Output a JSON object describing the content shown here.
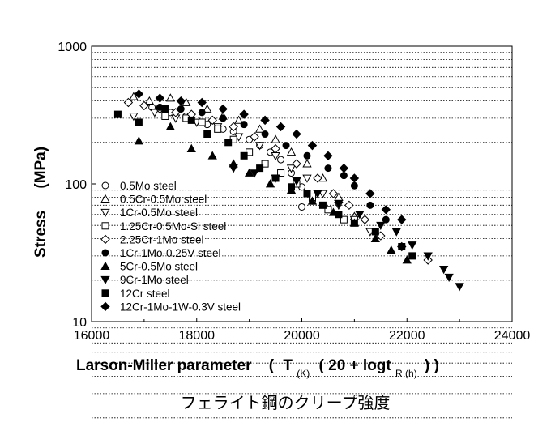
{
  "chart_data": {
    "type": "scatter",
    "title": "",
    "caption": "フェライト鋼のクリープ強度",
    "xlabel": {
      "main": "Larson-Miller parameter",
      "open": "(",
      "t1": "T",
      "s1": "(K)",
      "mid": "( 20 + logt",
      "s2": "R (h)",
      "close": ") )"
    },
    "ylabel": {
      "main": "Stress",
      "unit": "(MPa)"
    },
    "xlim": [
      16000,
      24000
    ],
    "ylim": [
      10,
      1000
    ],
    "y_scale": "log",
    "x_ticks": [
      16000,
      18000,
      20000,
      22000,
      24000
    ],
    "x_tick_labels": [
      "16000",
      "18000",
      "20000",
      "22000",
      "24000"
    ],
    "y_ticks": [
      10,
      100,
      1000
    ],
    "y_tick_labels": [
      "10",
      "100",
      "1000"
    ],
    "grid": "horizontal-minor-dotted",
    "legend_position": "inside-lower-left",
    "series": [
      {
        "name": "0.5Mo steel",
        "marker": "circle-open",
        "points": [
          [
            17150,
            360
          ],
          [
            17500,
            330
          ],
          [
            17800,
            310
          ],
          [
            18000,
            290
          ],
          [
            18200,
            270
          ],
          [
            18500,
            250
          ],
          [
            18700,
            240
          ],
          [
            19000,
            210
          ],
          [
            19200,
            190
          ],
          [
            19400,
            170
          ],
          [
            19600,
            150
          ],
          [
            19800,
            120
          ],
          [
            20000,
            95
          ],
          [
            20200,
            75
          ],
          [
            20000,
            68
          ]
        ]
      },
      {
        "name": "0.5Cr-0.5Mo steel",
        "marker": "triangle-up-open",
        "points": [
          [
            16800,
            430
          ],
          [
            17100,
            400
          ],
          [
            17500,
            420
          ],
          [
            17800,
            390
          ],
          [
            18200,
            350
          ],
          [
            18500,
            310
          ],
          [
            18800,
            290
          ],
          [
            19200,
            250
          ],
          [
            19500,
            210
          ],
          [
            19800,
            170
          ],
          [
            20100,
            140
          ],
          [
            20400,
            110
          ],
          [
            20700,
            80
          ],
          [
            21000,
            58
          ]
        ]
      },
      {
        "name": "1Cr-0.5Mo steel",
        "marker": "triangle-down-open",
        "points": [
          [
            16800,
            310
          ],
          [
            17200,
            330
          ],
          [
            17600,
            300
          ],
          [
            18000,
            280
          ],
          [
            18400,
            260
          ],
          [
            18800,
            220
          ],
          [
            19200,
            190
          ],
          [
            19500,
            160
          ],
          [
            19800,
            130
          ],
          [
            20100,
            110
          ],
          [
            20400,
            85
          ],
          [
            20700,
            70
          ],
          [
            21000,
            55
          ],
          [
            21300,
            45
          ]
        ]
      },
      {
        "name": "1.25Cr-0.5Mo-Si steel",
        "marker": "square-open",
        "points": [
          [
            17400,
            310
          ],
          [
            17800,
            300
          ],
          [
            18100,
            280
          ],
          [
            18400,
            250
          ],
          [
            18700,
            210
          ],
          [
            19000,
            170
          ],
          [
            19300,
            140
          ],
          [
            19600,
            120
          ],
          [
            19900,
            100
          ],
          [
            20200,
            80
          ],
          [
            20500,
            65
          ],
          [
            20800,
            55
          ]
        ]
      },
      {
        "name": "2.25Cr-1Mo steel",
        "marker": "diamond-open",
        "points": [
          [
            16700,
            390
          ],
          [
            17000,
            370
          ],
          [
            17300,
            350
          ],
          [
            17600,
            330
          ],
          [
            17900,
            320
          ],
          [
            18300,
            290
          ],
          [
            18700,
            260
          ],
          [
            19100,
            220
          ],
          [
            19500,
            180
          ],
          [
            19900,
            140
          ],
          [
            20300,
            110
          ],
          [
            20600,
            85
          ],
          [
            20900,
            70
          ],
          [
            21200,
            55
          ],
          [
            21500,
            42
          ],
          [
            21900,
            35
          ],
          [
            22400,
            28
          ]
        ]
      },
      {
        "name": "1Cr-1Mo-0.25V steel",
        "marker": "circle-filled",
        "points": [
          [
            17300,
            360
          ],
          [
            17700,
            350
          ],
          [
            18100,
            330
          ],
          [
            18500,
            300
          ],
          [
            18900,
            270
          ],
          [
            19300,
            230
          ],
          [
            19700,
            190
          ],
          [
            20100,
            160
          ],
          [
            20500,
            130
          ],
          [
            20800,
            115
          ],
          [
            21000,
            97
          ],
          [
            21300,
            70
          ],
          [
            21600,
            55
          ]
        ]
      },
      {
        "name": "5Cr-0.5Mo steel",
        "marker": "triangle-up-filled",
        "points": [
          [
            16900,
            205
          ],
          [
            17500,
            260
          ],
          [
            17900,
            180
          ],
          [
            18300,
            160
          ],
          [
            18700,
            140
          ],
          [
            19000,
            120
          ],
          [
            19400,
            100
          ],
          [
            19800,
            90
          ],
          [
            20200,
            75
          ],
          [
            20600,
            62
          ],
          [
            21000,
            52
          ],
          [
            21400,
            40
          ],
          [
            21700,
            33
          ],
          [
            22000,
            28
          ]
        ]
      },
      {
        "name": "9Cr-1Mo steel",
        "marker": "triangle-down-filled",
        "points": [
          [
            18700,
            130
          ],
          [
            19100,
            120
          ],
          [
            19500,
            110
          ],
          [
            19900,
            105
          ],
          [
            20300,
            85
          ],
          [
            20700,
            72
          ],
          [
            21100,
            60
          ],
          [
            21500,
            50
          ],
          [
            21800,
            45
          ],
          [
            22100,
            36
          ],
          [
            22400,
            30
          ],
          [
            22700,
            24
          ],
          [
            22800,
            21
          ],
          [
            23000,
            18
          ]
        ]
      },
      {
        "name": "12Cr steel",
        "marker": "square-filled",
        "points": [
          [
            16500,
            320
          ],
          [
            16900,
            280
          ],
          [
            17400,
            350
          ],
          [
            17900,
            290
          ],
          [
            18200,
            230
          ],
          [
            18600,
            200
          ],
          [
            18900,
            160
          ],
          [
            19200,
            130
          ],
          [
            19500,
            110
          ],
          [
            19800,
            95
          ],
          [
            20100,
            85
          ],
          [
            20400,
            70
          ],
          [
            20700,
            60
          ],
          [
            21000,
            52
          ],
          [
            21400,
            45
          ],
          [
            21900,
            35
          ],
          [
            22100,
            30
          ]
        ]
      },
      {
        "name": "12Cr-1Mo-1W-0.3V steel",
        "marker": "diamond-filled",
        "points": [
          [
            16900,
            450
          ],
          [
            17300,
            420
          ],
          [
            17700,
            400
          ],
          [
            18100,
            390
          ],
          [
            18500,
            350
          ],
          [
            18900,
            320
          ],
          [
            19300,
            290
          ],
          [
            19600,
            260
          ],
          [
            19900,
            230
          ],
          [
            20200,
            190
          ],
          [
            20500,
            160
          ],
          [
            20800,
            130
          ],
          [
            21000,
            110
          ],
          [
            21300,
            85
          ],
          [
            21600,
            65
          ],
          [
            21900,
            55
          ]
        ]
      }
    ]
  }
}
